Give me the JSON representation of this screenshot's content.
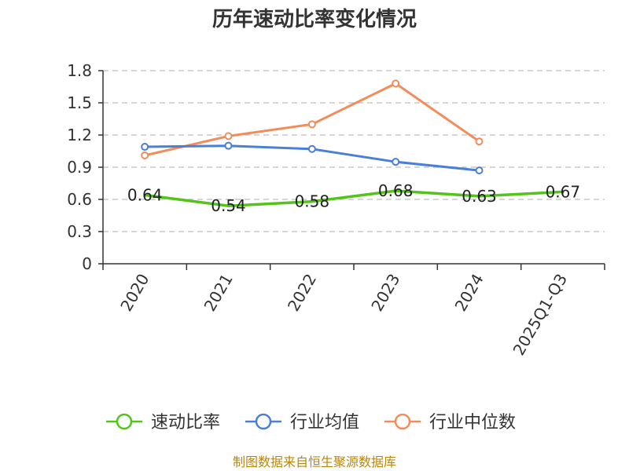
{
  "chart_data": {
    "type": "line",
    "title": "历年速动比率变化情况",
    "categories": [
      "2020",
      "2021",
      "2022",
      "2023",
      "2024",
      "2025Q1-Q3"
    ],
    "y_ticks": [
      "0",
      "0.3",
      "0.6",
      "0.9",
      "1.2",
      "1.5",
      "1.8"
    ],
    "ylim": [
      0,
      1.8
    ],
    "grid": true,
    "legend_position": "bottom",
    "series": [
      {
        "name": "速动比率",
        "color": "#52c41a",
        "values": [
          0.64,
          0.54,
          0.58,
          0.68,
          0.63,
          0.67
        ],
        "labels": [
          "0.64",
          "0.54",
          "0.58",
          "0.68",
          "0.63",
          "0.67"
        ],
        "show_labels": true,
        "markers": false
      },
      {
        "name": "行业均值",
        "color": "#4a7fd9",
        "values": [
          1.09,
          1.1,
          1.07,
          0.95,
          0.87,
          null
        ],
        "show_labels": false,
        "markers": true
      },
      {
        "name": "行业中位数",
        "color": "#f28c5a",
        "values": [
          1.01,
          1.19,
          1.3,
          1.68,
          1.14,
          null
        ],
        "show_labels": false,
        "markers": true
      }
    ],
    "source": "制图数据来自恒生聚源数据库"
  }
}
